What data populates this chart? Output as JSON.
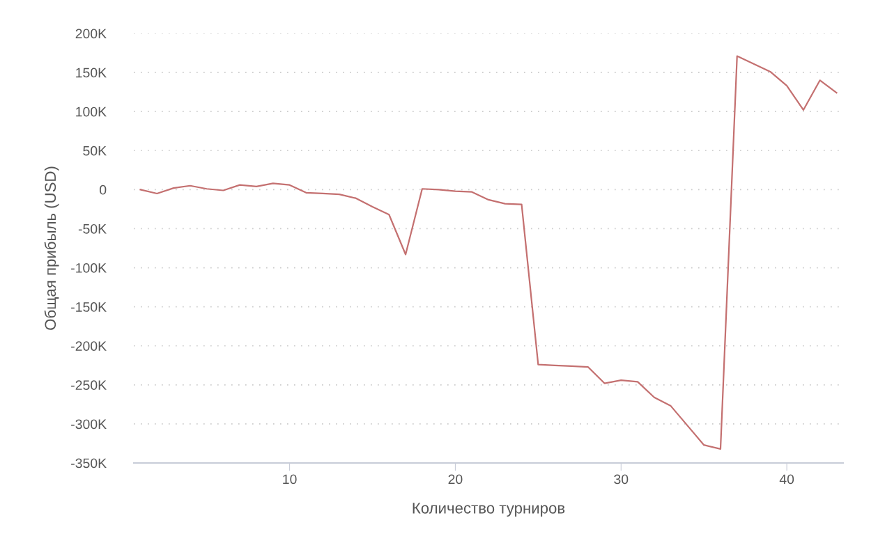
{
  "chart_data": {
    "type": "line",
    "xlabel": "Количество турниров",
    "ylabel": "Общая прибыль (USD)",
    "x": [
      1,
      2,
      3,
      4,
      5,
      6,
      7,
      8,
      9,
      10,
      11,
      12,
      13,
      14,
      15,
      16,
      17,
      18,
      19,
      20,
      21,
      22,
      23,
      24,
      25,
      26,
      27,
      28,
      29,
      30,
      31,
      32,
      33,
      34,
      35,
      36,
      37,
      38,
      39,
      40,
      41,
      42,
      43
    ],
    "series": [
      {
        "color": "#c47070",
        "values": [
          0,
          -5000,
          2000,
          5000,
          1000,
          -1000,
          6000,
          4000,
          8000,
          6000,
          -4000,
          -5000,
          -6000,
          -11000,
          -22000,
          -32000,
          -83000,
          1000,
          0,
          -2000,
          -3000,
          -13000,
          -18000,
          -19000,
          -224000,
          -225000,
          -226000,
          -227000,
          -248000,
          -244000,
          -246000,
          -266000,
          -277000,
          -302000,
          -327000,
          -332000,
          171000,
          161000,
          151000,
          133000,
          102000,
          140000,
          124000
        ]
      }
    ],
    "xlim": [
      0.6,
      43.4
    ],
    "xticks": [
      10,
      20,
      30,
      40
    ],
    "ylim": [
      -350000,
      200000
    ],
    "yticks": [
      {
        "value": -350000,
        "label": "-350K"
      },
      {
        "value": -300000,
        "label": "-300K"
      },
      {
        "value": -250000,
        "label": "-250K"
      },
      {
        "value": -200000,
        "label": "-200K"
      },
      {
        "value": -150000,
        "label": "-150K"
      },
      {
        "value": -100000,
        "label": "-100K"
      },
      {
        "value": -50000,
        "label": "-50K"
      },
      {
        "value": 0,
        "label": "0"
      },
      {
        "value": 50000,
        "label": "50K"
      },
      {
        "value": 100000,
        "label": "100K"
      },
      {
        "value": 150000,
        "label": "150K"
      },
      {
        "value": 200000,
        "label": "200K"
      }
    ],
    "grid": "y",
    "legend": false,
    "marker": "none",
    "line_style": "solid"
  }
}
